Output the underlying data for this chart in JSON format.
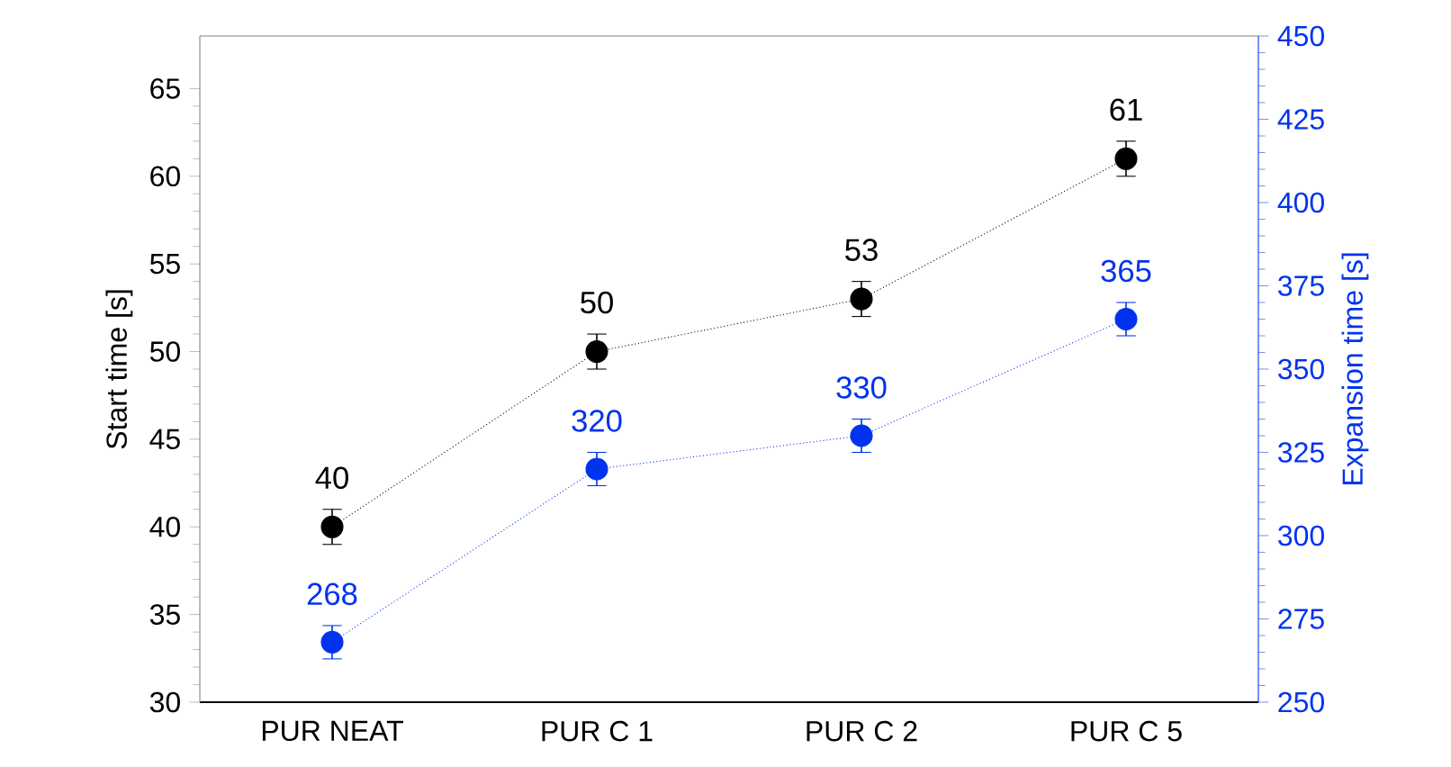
{
  "chart_data": {
    "type": "line",
    "ylabel": "Start time [s]",
    "y2label": "Expansion time [s]",
    "categories": [
      "PUR NEAT",
      "PUR C 1",
      "PUR C 2",
      "PUR C 5"
    ],
    "series": [
      {
        "color": "#000000",
        "values": [
          40,
          50,
          53,
          61
        ],
        "errors": [
          1,
          1,
          1,
          1
        ]
      },
      {
        "color": "#0033ee",
        "axis": "y2",
        "values": [
          268,
          320,
          330,
          365
        ],
        "errors": [
          5,
          5,
          5,
          5
        ]
      }
    ],
    "ylim": [
      30,
      68
    ],
    "yticks": [
      30,
      35,
      40,
      45,
      50,
      55,
      60,
      65
    ],
    "y2lim": [
      250,
      450
    ],
    "y2ticks": [
      250,
      275,
      300,
      325,
      350,
      375,
      400,
      425,
      450
    ],
    "data_labels": true,
    "marker": "circle",
    "line_style": "dotted",
    "grid": false
  }
}
